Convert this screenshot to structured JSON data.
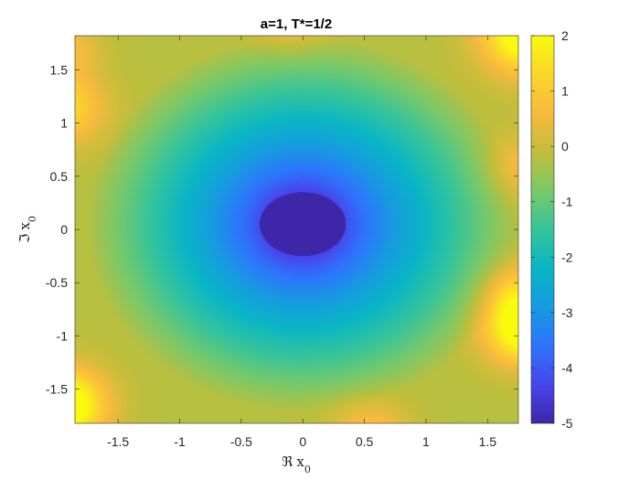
{
  "chart_data": {
    "type": "heatmap",
    "title": "a=1, T*=1/2",
    "xlabel": {
      "symbol": "ℜ",
      "var": "x",
      "sub": "0"
    },
    "ylabel": {
      "symbol": "ℑ",
      "var": "x",
      "sub": "0"
    },
    "xlim": [
      -1.85,
      1.75
    ],
    "ylim": [
      -1.82,
      1.82
    ],
    "xticks": [
      -1.5,
      -1,
      -0.5,
      0,
      0.5,
      1,
      1.5
    ],
    "xtick_labels": [
      "-1.5",
      "-1",
      "-0.5",
      "0",
      "0.5",
      "1",
      "1.5"
    ],
    "yticks": [
      -1.5,
      -1,
      -0.5,
      0,
      0.5,
      1,
      1.5
    ],
    "ytick_labels": [
      "-1.5",
      "-1",
      "-0.5",
      "0",
      "0.5",
      "1",
      "1.5"
    ],
    "colorbar": {
      "range": [
        -5,
        2
      ],
      "ticks": [
        -5,
        -4,
        -3,
        -2,
        -1,
        0,
        1,
        2
      ],
      "tick_labels": [
        "-5",
        "-4",
        "-3",
        "-2",
        "-1",
        "0",
        "1",
        "2"
      ],
      "colormap": "parula"
    },
    "features": [
      {
        "kind": "minimum",
        "center": [
          0,
          0.05
        ],
        "radius": [
          0.35,
          0.3
        ],
        "value": -5
      },
      {
        "kind": "maximum",
        "center": [
          1.75,
          1.75
        ],
        "value": 2
      },
      {
        "kind": "maximum",
        "center": [
          1.75,
          -1.0
        ],
        "value": 2
      },
      {
        "kind": "maximum",
        "center": [
          -1.85,
          -1.6
        ],
        "value": 2
      },
      {
        "kind": "high",
        "center": [
          -1.85,
          1.1
        ],
        "value": 1
      },
      {
        "kind": "high",
        "center": [
          0.5,
          -1.82
        ],
        "value": 0.8
      },
      {
        "kind": "high",
        "center": [
          1.75,
          0.6
        ],
        "value": 0.3
      }
    ]
  }
}
